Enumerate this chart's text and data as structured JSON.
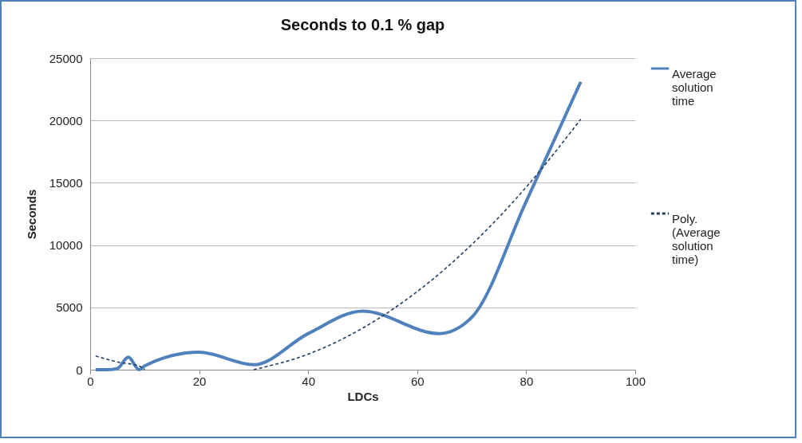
{
  "chart_data": {
    "type": "line",
    "title": "Seconds to 0.1 % gap",
    "xlabel": "LDCs",
    "ylabel": "Seconds",
    "xlim": [
      0,
      100
    ],
    "xticks": [
      0,
      20,
      40,
      60,
      80,
      100
    ],
    "ylim": [
      0,
      25000
    ],
    "yticks": [
      0,
      5000,
      10000,
      15000,
      20000,
      25000
    ],
    "grid": "y",
    "legend": "right",
    "series": [
      {
        "name": "Average solution time",
        "color": "#4f81bd",
        "line_style": "solid",
        "x": [
          1,
          3,
          5,
          7,
          9,
          10,
          20,
          30,
          40,
          50,
          64,
          70,
          80,
          90
        ],
        "values": [
          0,
          0,
          100,
          1000,
          0,
          300,
          1400,
          400,
          2900,
          4700,
          2900,
          4200,
          13500,
          23100
        ]
      },
      {
        "name": "Poly. (Average solution time)",
        "color": "#243f60",
        "line_style": "dashed",
        "x": [
          1,
          5,
          9,
          10,
          20,
          30,
          40,
          50,
          60,
          70,
          80,
          90
        ],
        "values": [
          1100,
          620,
          280,
          0,
          null,
          0,
          1250,
          3340,
          6270,
          10040,
          14650,
          20100
        ]
      }
    ]
  }
}
